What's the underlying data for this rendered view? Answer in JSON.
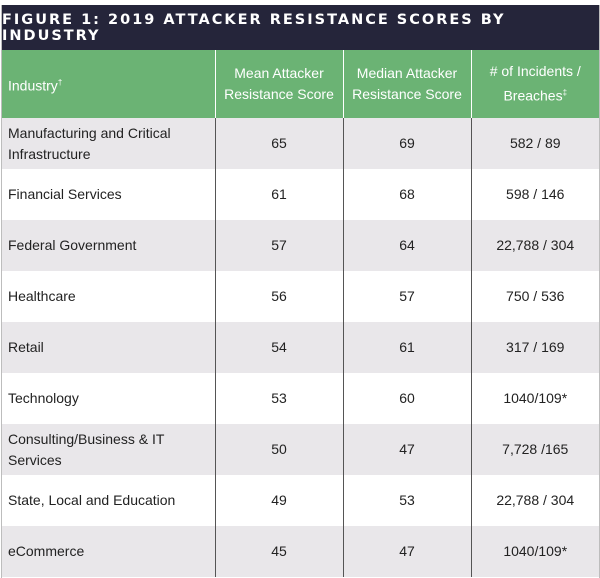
{
  "title": "FIGURE 1: 2019 ATTACKER RESISTANCE SCORES BY INDUSTRY",
  "chart_data": {
    "type": "table",
    "title": "FIGURE 1: 2019 ATTACKER RESISTANCE SCORES BY INDUSTRY",
    "columns": [
      "Industry†",
      "Mean Attacker Resistance Score",
      "Median Attacker Resistance Score",
      "# of Incidents / Breaches‡"
    ],
    "rows": [
      [
        "Manufacturing and Critical Infrastructure",
        "65",
        "69",
        "582 / 89"
      ],
      [
        "Financial Services",
        "61",
        "68",
        "598 / 146"
      ],
      [
        "Federal Government",
        "57",
        "64",
        "22,788 / 304"
      ],
      [
        "Healthcare",
        "56",
        "57",
        "750 / 536"
      ],
      [
        "Retail",
        "54",
        "61",
        "317 / 169"
      ],
      [
        "Technology",
        "53",
        "60",
        "1040/109*"
      ],
      [
        "Consulting/Business & IT Services",
        "50",
        "47",
        "7,728 /165"
      ],
      [
        "State, Local and Education",
        "49",
        "53",
        "22,788 / 304"
      ],
      [
        "eCommerce",
        "45",
        "47",
        "1040/109*"
      ]
    ]
  },
  "colors": {
    "title_bg": "#25253a",
    "header_bg": "#6bb374",
    "alt_row": "#e9e7ea"
  }
}
